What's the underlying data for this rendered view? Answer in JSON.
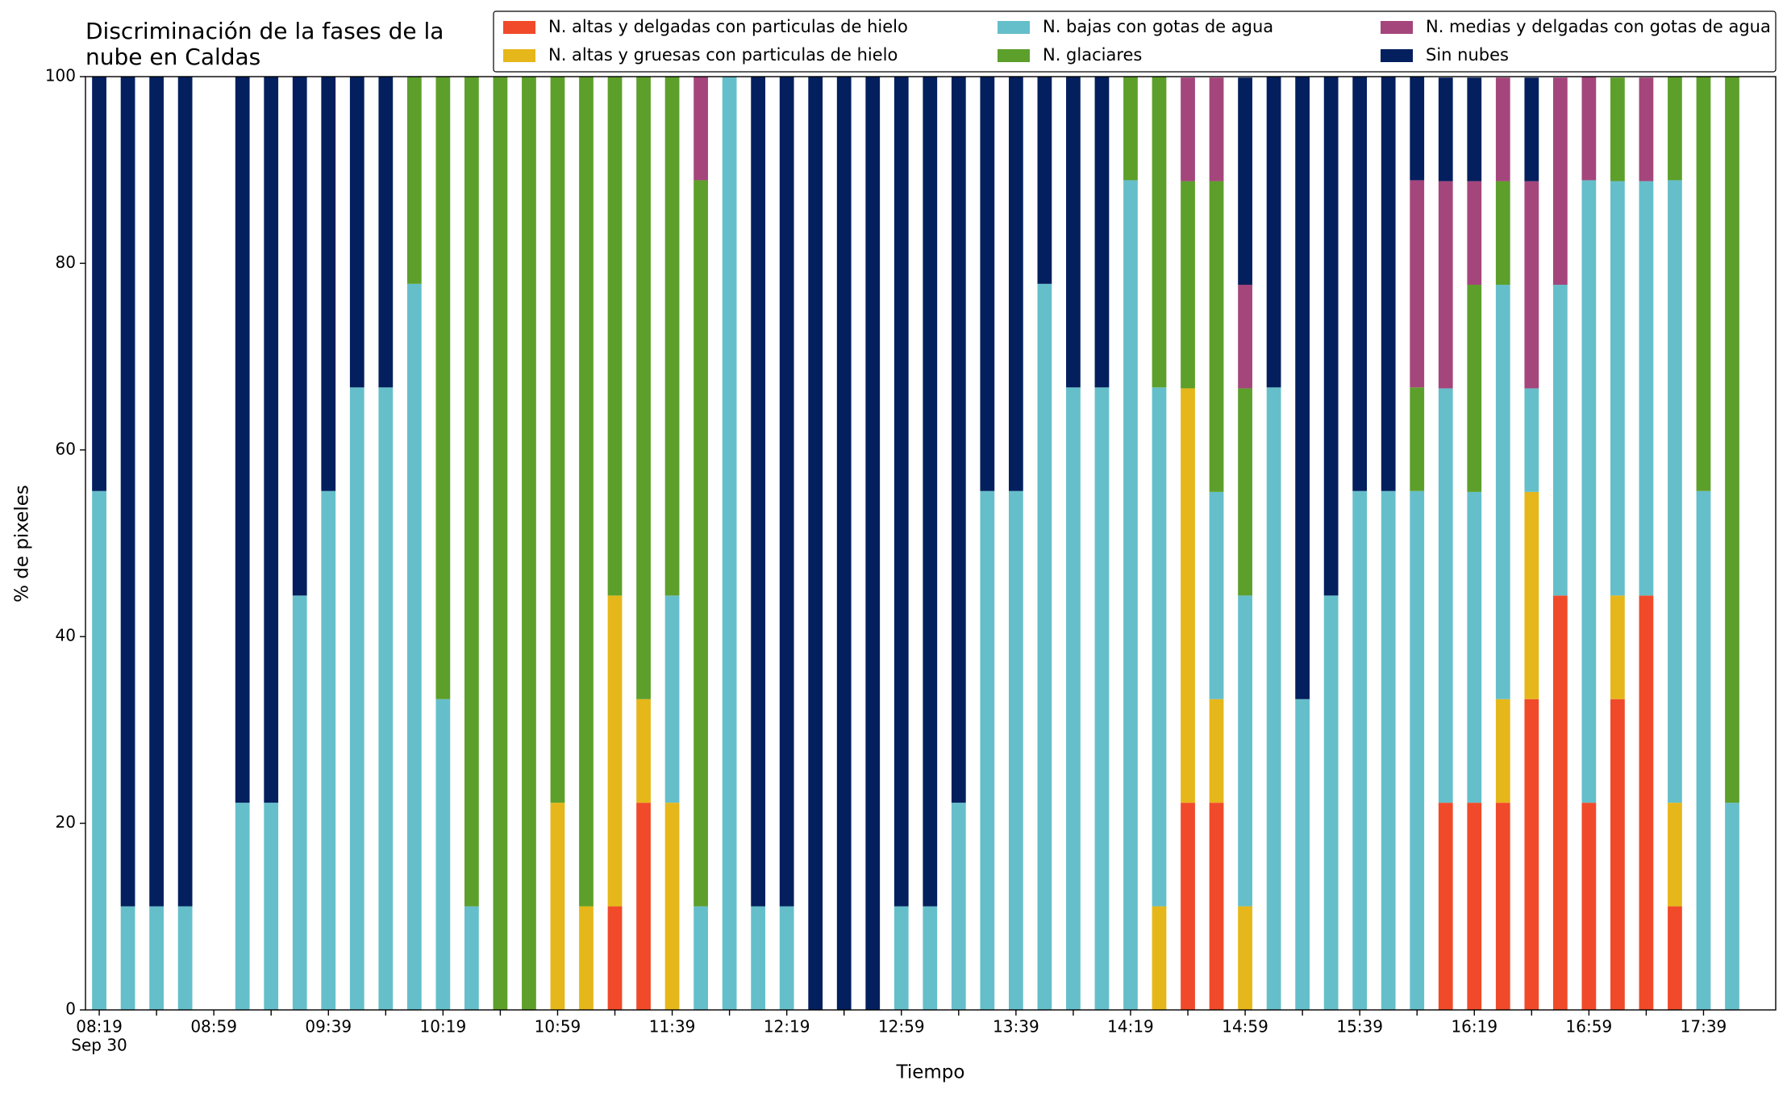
{
  "chart_data": {
    "type": "stacked_bar",
    "title": "Discriminación de la fases de la\nnube en Caldas",
    "xlabel": "Tiempo",
    "ylabel": "% de pixeles",
    "date_label": "Sep 30",
    "categories": [
      "08:19",
      null,
      null,
      null,
      "08:59",
      null,
      null,
      null,
      "09:39",
      null,
      null,
      null,
      "10:19",
      null,
      null,
      null,
      "10:59",
      null,
      null,
      null,
      "11:39",
      null,
      null,
      null,
      "12:19",
      null,
      null,
      null,
      "12:59",
      null,
      null,
      null,
      "13:39",
      null,
      null,
      null,
      "14:19",
      null,
      null,
      null,
      "14:59",
      null,
      null,
      null,
      "15:39",
      null,
      null,
      null,
      "16:19",
      null,
      null,
      null,
      "16:59",
      null,
      null,
      null,
      "17:39",
      null
    ],
    "series": [
      {
        "name": "N. altas y delgadas con particulas de hielo",
        "color": "#f04a2a",
        "values": [
          0,
          0,
          0,
          0,
          0,
          0,
          0,
          0,
          0,
          0,
          0,
          0,
          0,
          0,
          0,
          0,
          0,
          0,
          11.1,
          22.2,
          0,
          0,
          0,
          0,
          0,
          0,
          0,
          0,
          0,
          0,
          0,
          0,
          0,
          0,
          0,
          0,
          0,
          0,
          22.2,
          22.2,
          0,
          0,
          0,
          0,
          0,
          0,
          0,
          22.2,
          22.2,
          22.2,
          33.3,
          44.4,
          22.2,
          33.3,
          44.4,
          11.1,
          0,
          0
        ]
      },
      {
        "name": "N. altas y gruesas con particulas de hielo",
        "color": "#e6b71a",
        "values": [
          0,
          0,
          0,
          0,
          0,
          0,
          0,
          0,
          0,
          0,
          0,
          0,
          0,
          0,
          0,
          0,
          22.2,
          11.1,
          33.3,
          11.1,
          22.2,
          0,
          0,
          0,
          0,
          0,
          0,
          0,
          0,
          0,
          0,
          0,
          0,
          0,
          0,
          0,
          0,
          11.1,
          44.4,
          11.1,
          11.1,
          0,
          0,
          0,
          0,
          0,
          0,
          0,
          0,
          11.1,
          22.2,
          0,
          0,
          11.1,
          0,
          11.1,
          0,
          0
        ]
      },
      {
        "name": "N. bajas con gotas de agua",
        "color": "#65bfca",
        "values": [
          55.6,
          11.1,
          11.1,
          11.1,
          0,
          22.2,
          22.2,
          44.4,
          55.6,
          66.7,
          66.7,
          77.8,
          33.3,
          11.1,
          0,
          0,
          0,
          0,
          0,
          0,
          22.2,
          11.1,
          100,
          11.1,
          11.1,
          0,
          0,
          0,
          11.1,
          11.1,
          22.2,
          55.6,
          55.6,
          77.8,
          66.7,
          66.7,
          88.9,
          55.6,
          0,
          22.2,
          33.3,
          66.7,
          33.3,
          44.4,
          55.6,
          55.6,
          55.6,
          44.4,
          33.3,
          44.4,
          11.1,
          33.3,
          66.7,
          44.4,
          44.4,
          66.7,
          55.6,
          22.2
        ]
      },
      {
        "name": "N. glaciares",
        "color": "#5d9f2b",
        "values": [
          0,
          0,
          0,
          0,
          0,
          0,
          0,
          0,
          0,
          0,
          0,
          22.2,
          66.7,
          88.9,
          100,
          100,
          77.8,
          88.9,
          55.6,
          66.7,
          55.6,
          77.8,
          0,
          0,
          0,
          0,
          0,
          0,
          0,
          0,
          0,
          0,
          0,
          0,
          0,
          0,
          11.1,
          33.3,
          22.2,
          33.3,
          22.2,
          0,
          0,
          0,
          0,
          0,
          11.1,
          0,
          22.2,
          11.1,
          0,
          0,
          0,
          11.1,
          0,
          11.1,
          44.4,
          77.8
        ]
      },
      {
        "name": "N. medias y delgadas con gotas de agua",
        "color": "#a4467c",
        "values": [
          0,
          0,
          0,
          0,
          0,
          0,
          0,
          0,
          0,
          0,
          0,
          0,
          0,
          0,
          0,
          0,
          0,
          0,
          0,
          0,
          0,
          11.1,
          0,
          0,
          0,
          0,
          0,
          0,
          0,
          0,
          0,
          0,
          0,
          0,
          0,
          0,
          0,
          0,
          11.1,
          11.1,
          11.1,
          0,
          0,
          0,
          0,
          0,
          22.2,
          22.2,
          11.1,
          11.1,
          22.2,
          22.2,
          11.1,
          0,
          11.1,
          0,
          0,
          0
        ]
      },
      {
        "name": "Sin nubes",
        "color": "#031f5e",
        "values": [
          44.4,
          88.9,
          88.9,
          88.9,
          0,
          77.8,
          77.8,
          55.6,
          44.4,
          33.3,
          33.3,
          0,
          0,
          0,
          0,
          0,
          0,
          0,
          0,
          0,
          0,
          0,
          0,
          88.9,
          88.9,
          100,
          100,
          100,
          88.9,
          88.9,
          77.8,
          44.4,
          44.4,
          22.2,
          33.3,
          33.3,
          0,
          0,
          0,
          0,
          22.2,
          33.3,
          66.7,
          55.6,
          44.4,
          44.4,
          11.1,
          11.1,
          11.1,
          0,
          11.1,
          0,
          0,
          0,
          0,
          0,
          0,
          0
        ]
      }
    ],
    "ylim": [
      0,
      100
    ],
    "yticks": [
      0,
      20,
      40,
      60,
      80,
      100
    ],
    "grid": false,
    "legend": "upper right"
  }
}
